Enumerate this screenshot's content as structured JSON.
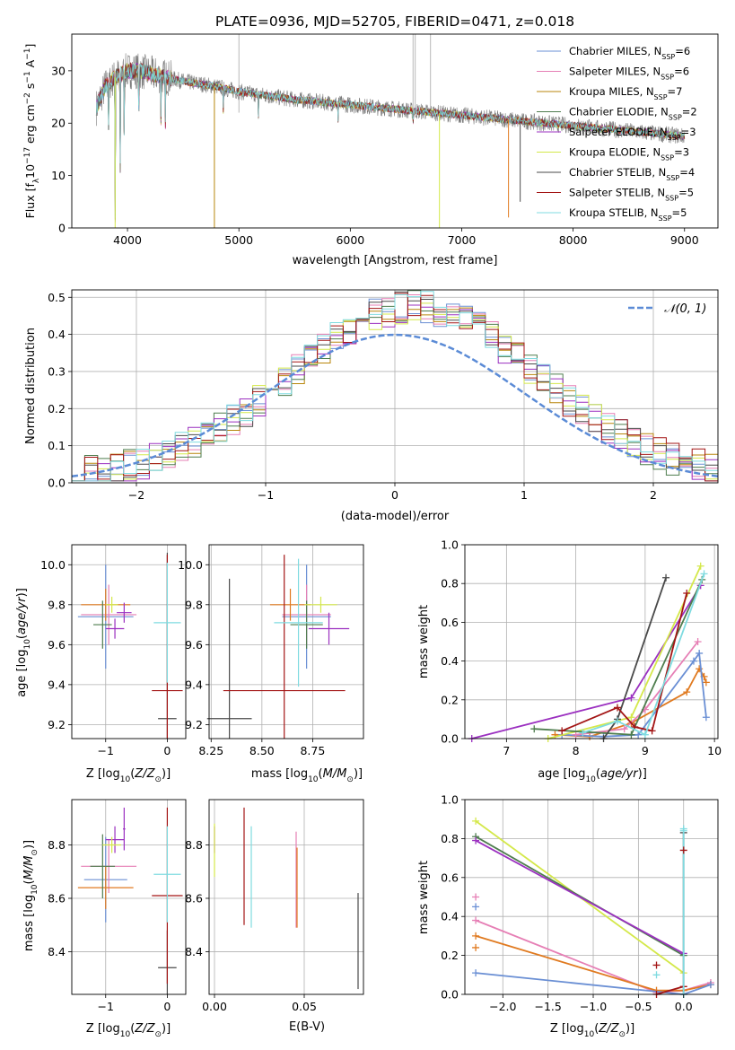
{
  "title": "PLATE=0936, MJD=52705, FIBERID=0471, z=0.018",
  "colors": {
    "chabrier_miles": "#6a8fd4",
    "salpeter_miles": "#e67fb5",
    "kroupa_miles": "#b8860b",
    "chabrier_elodie": "#4e7d4e",
    "salpeter_elodie": "#9b30c0",
    "kroupa_elodie": "#d4e84a",
    "chabrier_stelib": "#4a4a4a",
    "salpeter_stelib": "#a31515",
    "kroupa_stelib": "#7fdbe0",
    "orange": "#e07a20",
    "data": "#7a7a7a",
    "gaussian": "#5b8bd6"
  },
  "chart_data": [
    {
      "id": "spectrum",
      "type": "line",
      "xlabel": "wavelength [Angstrom, rest frame]",
      "ylabel": "Flux [fλ 10⁻¹⁷ erg cm⁻² s⁻¹ A⁻¹]",
      "xlim": [
        3500,
        9300
      ],
      "ylim": [
        0,
        37
      ],
      "xticks": [
        "4000",
        "5000",
        "6000",
        "7000",
        "8000",
        "9000"
      ],
      "yticks": [
        "0",
        "10",
        "20",
        "30"
      ],
      "legend_position": "top-right",
      "legend": [
        {
          "label": "Chabrier MILES, N",
          "sub": "SSP",
          "suffix": "=6",
          "color": "#6a8fd4"
        },
        {
          "label": "Salpeter MILES, N",
          "sub": "SSP",
          "suffix": "=6",
          "color": "#e67fb5"
        },
        {
          "label": "Kroupa MILES, N",
          "sub": "SSP",
          "suffix": "=7",
          "color": "#b8860b"
        },
        {
          "label": "Chabrier ELODIE, N",
          "sub": "SSP",
          "suffix": "=2",
          "color": "#4e7d4e"
        },
        {
          "label": "Salpeter ELODIE, N",
          "sub": "SSP",
          "suffix": "=3",
          "color": "#9b30c0"
        },
        {
          "label": "Kroupa ELODIE, N",
          "sub": "SSP",
          "suffix": "=3",
          "color": "#d4e84a"
        },
        {
          "label": "Chabrier STELIB, N",
          "sub": "SSP",
          "suffix": "=4",
          "color": "#4a4a4a"
        },
        {
          "label": "Salpeter STELIB, N",
          "sub": "SSP",
          "suffix": "=5",
          "color": "#a31515"
        },
        {
          "label": "Kroupa STELIB, N",
          "sub": "SSP",
          "suffix": "=5",
          "color": "#7fdbe0"
        }
      ],
      "continuum": {
        "x": [
          3720,
          3800,
          3900,
          4000,
          4100,
          4300,
          4500,
          4800,
          5000,
          5500,
          6000,
          6500,
          7000,
          7500,
          8000,
          8500,
          9000
        ],
        "y": [
          23,
          27,
          29,
          30,
          30,
          29,
          28,
          27,
          26,
          24.5,
          23.5,
          22.5,
          21.5,
          20.5,
          19.5,
          18.5,
          17.5
        ]
      },
      "absorption_lines": [
        {
          "x": 3830,
          "depth": 8
        },
        {
          "x": 3889,
          "depth": 30
        },
        {
          "x": 3934,
          "depth": 20
        },
        {
          "x": 3970,
          "depth": 12
        },
        {
          "x": 4102,
          "depth": 10
        },
        {
          "x": 4300,
          "depth": 8
        },
        {
          "x": 4340,
          "depth": 9
        },
        {
          "x": 4861,
          "depth": 5
        },
        {
          "x": 5175,
          "depth": 4
        },
        {
          "x": 5890,
          "depth": 3
        },
        {
          "x": 6563,
          "depth": 3
        }
      ],
      "model_glitches": [
        {
          "x": 3889,
          "to": 0,
          "color": "#d4e84a"
        },
        {
          "x": 4780,
          "to": 0,
          "color": "#b8860b"
        },
        {
          "x": 6800,
          "to": 0,
          "color": "#d4e84a"
        },
        {
          "x": 7420,
          "to": 2,
          "color": "#e07a20"
        },
        {
          "x": 7525,
          "to": 5,
          "color": "#4a4a4a"
        }
      ],
      "emission_lines": [
        {
          "x": 5000,
          "y": 37
        },
        {
          "x": 6563,
          "y": 37
        },
        {
          "x": 6583,
          "y": 37
        },
        {
          "x": 6720,
          "y": 37
        }
      ]
    },
    {
      "id": "residuals",
      "type": "histogram",
      "xlabel": "(data-model)/error",
      "ylabel": "Normed distribution",
      "xlim": [
        -2.5,
        2.5
      ],
      "ylim": [
        0,
        0.52
      ],
      "xticks": [
        "−2",
        "−1",
        "0",
        "1",
        "2"
      ],
      "yticks": [
        "0.0",
        "0.1",
        "0.2",
        "0.3",
        "0.4",
        "0.5"
      ],
      "legend_position": "top-right",
      "legend_label": "N(0, 1)",
      "bin_width": 0.1,
      "bin_start": -2.5,
      "series_colors": [
        "#6a8fd4",
        "#e67fb5",
        "#b8860b",
        "#4e7d4e",
        "#9b30c0",
        "#d4e84a",
        "#4a4a4a",
        "#a31515",
        "#7fdbe0"
      ]
    },
    {
      "id": "age_vs_Z",
      "type": "errorbar",
      "xlabel_main": "Z [log",
      "xlabel_sub": "10",
      "xlabel_rest": "(Z/Z⊙)]",
      "ylabel": "age  [log10(age/yr)]",
      "xlim": [
        -1.55,
        0.3
      ],
      "ylim": [
        9.13,
        10.1
      ],
      "xticks": [
        {
          "v": -1,
          "l": "−1"
        },
        {
          "v": 0,
          "l": "0"
        }
      ],
      "yticks": [
        {
          "v": 9.2,
          "l": "9.2"
        },
        {
          "v": 9.4,
          "l": "9.4"
        },
        {
          "v": 9.6,
          "l": "9.6"
        },
        {
          "v": 9.8,
          "l": "9.8"
        },
        {
          "v": 10.0,
          "l": "10.0"
        }
      ],
      "points": [
        {
          "x": -1.0,
          "y": 9.74,
          "xerr": 0.45,
          "yerr": 0.26,
          "color": "#6a8fd4"
        },
        {
          "x": -0.95,
          "y": 9.75,
          "xerr": 0.45,
          "yerr": 0.15,
          "color": "#e67fb5"
        },
        {
          "x": -1.0,
          "y": 9.8,
          "xerr": 0.4,
          "yerr": 0.08,
          "color": "#e07a20"
        },
        {
          "x": -1.05,
          "y": 9.7,
          "xerr": 0.15,
          "yerr": 0.12,
          "color": "#4e7d4e"
        },
        {
          "x": -0.7,
          "y": 9.76,
          "xerr": 0.12,
          "yerr": 0.05,
          "color": "#9b30c0"
        },
        {
          "x": -0.9,
          "y": 9.8,
          "xerr": 0.1,
          "yerr": 0.04,
          "color": "#d4e84a"
        },
        {
          "x": 0.0,
          "y": 9.23,
          "xerr": 0.15,
          "yerr": 0.83,
          "color": "#4a4a4a"
        },
        {
          "x": 0.0,
          "y": 9.37,
          "xerr": 0.25,
          "yerr": 0.68,
          "color": "#a31515"
        },
        {
          "x": 0.0,
          "y": 9.71,
          "xerr": 0.22,
          "yerr": 0.3,
          "color": "#7fdbe0"
        },
        {
          "x": -0.85,
          "y": 9.68,
          "xerr": 0.15,
          "yerr": 0.05,
          "color": "#9b30c0"
        }
      ]
    },
    {
      "id": "age_vs_mass",
      "type": "errorbar",
      "xlabel_main": "mass [log",
      "xlabel_sub": "10",
      "xlabel_rest": "(M/M⊙)]",
      "xlim": [
        8.24,
        9.0
      ],
      "ylim": [
        9.13,
        10.1
      ],
      "xticks": [
        {
          "v": 8.25,
          "l": "8.25"
        },
        {
          "v": 8.5,
          "l": "8.50"
        },
        {
          "v": 8.75,
          "l": "8.75"
        }
      ],
      "yticks": [
        {
          "v": 9.2,
          "l": "9.2"
        },
        {
          "v": 9.4,
          "l": "9.4"
        },
        {
          "v": 9.6,
          "l": "9.6"
        },
        {
          "v": 9.8,
          "l": "9.8"
        },
        {
          "v": 10.0,
          "l": "10.0"
        }
      ],
      "points": [
        {
          "x": 8.72,
          "y": 9.74,
          "xerr": 0.12,
          "yerr": 0.26,
          "color": "#6a8fd4"
        },
        {
          "x": 8.72,
          "y": 9.75,
          "xerr": 0.12,
          "yerr": 0.15,
          "color": "#e67fb5"
        },
        {
          "x": 8.64,
          "y": 9.8,
          "xerr": 0.1,
          "yerr": 0.08,
          "color": "#e07a20"
        },
        {
          "x": 8.72,
          "y": 9.7,
          "xerr": 0.08,
          "yerr": 0.12,
          "color": "#4e7d4e"
        },
        {
          "x": 8.83,
          "y": 9.68,
          "xerr": 0.1,
          "yerr": 0.08,
          "color": "#9b30c0"
        },
        {
          "x": 8.79,
          "y": 9.8,
          "xerr": 0.08,
          "yerr": 0.04,
          "color": "#d4e84a"
        },
        {
          "x": 8.34,
          "y": 9.23,
          "xerr": 0.11,
          "yerr": 0.7,
          "color": "#4a4a4a"
        },
        {
          "x": 8.61,
          "y": 9.37,
          "xerr": 0.3,
          "yerr": 0.68,
          "color": "#a31515"
        },
        {
          "x": 8.68,
          "y": 9.71,
          "xerr": 0.12,
          "yerr": 0.32,
          "color": "#7fdbe0"
        }
      ]
    },
    {
      "id": "weight_vs_age",
      "type": "line",
      "xlabel": "age  [log10(age/yr)]",
      "ylabel": "mass weight",
      "xlim": [
        6.4,
        10.05
      ],
      "ylim": [
        0,
        1.0
      ],
      "xticks": [
        {
          "v": 7,
          "l": "7"
        },
        {
          "v": 8,
          "l": "8"
        },
        {
          "v": 9,
          "l": "9"
        },
        {
          "v": 10,
          "l": "10"
        }
      ],
      "yticks": [
        {
          "v": 0,
          "l": "0.0"
        },
        {
          "v": 0.2,
          "l": "0.2"
        },
        {
          "v": 0.4,
          "l": "0.4"
        },
        {
          "v": 0.6,
          "l": "0.6"
        },
        {
          "v": 0.8,
          "l": "0.8"
        },
        {
          "v": 1.0,
          "l": "1.0"
        }
      ],
      "series": [
        {
          "color": "#e07a20",
          "x": [
            7.7,
            8.2,
            8.8,
            9.6,
            9.78,
            9.85,
            9.88
          ],
          "y": [
            0.02,
            0.01,
            0.08,
            0.24,
            0.36,
            0.32,
            0.29
          ]
        },
        {
          "color": "#6a8fd4",
          "x": [
            7.8,
            8.4,
            8.9,
            9.7,
            9.78,
            9.88
          ],
          "y": [
            0.02,
            0.01,
            0.02,
            0.4,
            0.44,
            0.11
          ]
        },
        {
          "color": "#e67fb5",
          "x": [
            8.0,
            8.7,
            9.0,
            9.76
          ],
          "y": [
            0.02,
            0.05,
            0.15,
            0.5
          ]
        },
        {
          "color": "#9b30c0",
          "x": [
            6.5,
            8.8,
            9.8
          ],
          "y": [
            0.0,
            0.21,
            0.79
          ]
        },
        {
          "color": "#d4e84a",
          "x": [
            7.6,
            8.8,
            9.8
          ],
          "y": [
            0.0,
            0.11,
            0.89
          ]
        },
        {
          "color": "#4e7d4e",
          "x": [
            7.4,
            8.8,
            9.82
          ],
          "y": [
            0.05,
            0.02,
            0.82
          ]
        },
        {
          "color": "#4a4a4a",
          "x": [
            8.4,
            8.6,
            9.3
          ],
          "y": [
            0.0,
            0.1,
            0.83
          ]
        },
        {
          "color": "#a31515",
          "x": [
            7.8,
            8.6,
            8.85,
            9.1,
            9.6
          ],
          "y": [
            0.04,
            0.16,
            0.06,
            0.04,
            0.75
          ]
        },
        {
          "color": "#7fdbe0",
          "x": [
            8.1,
            8.6,
            9.0,
            9.85
          ],
          "y": [
            0.03,
            0.09,
            0.02,
            0.85
          ]
        }
      ]
    },
    {
      "id": "mass_vs_Z",
      "type": "errorbar",
      "xlabel_main": "Z [log",
      "xlabel_sub": "10",
      "xlabel_rest": "(Z/Z⊙)]",
      "ylabel": "mass [log10(M/M⊙)]",
      "xlim": [
        -1.55,
        0.3
      ],
      "ylim": [
        8.24,
        8.97
      ],
      "xticks": [
        {
          "v": -1,
          "l": "−1"
        },
        {
          "v": 0,
          "l": "0"
        }
      ],
      "yticks": [
        {
          "v": 8.4,
          "l": "8.4"
        },
        {
          "v": 8.6,
          "l": "8.6"
        },
        {
          "v": 8.8,
          "l": "8.8"
        }
      ],
      "points": [
        {
          "x": -1.0,
          "y": 8.67,
          "xerr": 0.35,
          "yerr": 0.16,
          "color": "#6a8fd4"
        },
        {
          "x": -0.95,
          "y": 8.72,
          "xerr": 0.45,
          "yerr": 0.1,
          "color": "#e67fb5"
        },
        {
          "x": -1.0,
          "y": 8.64,
          "xerr": 0.45,
          "yerr": 0.08,
          "color": "#e07a20"
        },
        {
          "x": -1.05,
          "y": 8.72,
          "xerr": 0.2,
          "yerr": 0.12,
          "color": "#4e7d4e"
        },
        {
          "x": -0.85,
          "y": 8.82,
          "xerr": 0.15,
          "yerr": 0.05,
          "color": "#9b30c0"
        },
        {
          "x": -0.9,
          "y": 8.8,
          "xerr": 0.15,
          "yerr": 0.03,
          "color": "#d4e84a"
        },
        {
          "x": 0.0,
          "y": 8.34,
          "xerr": 0.15,
          "yerr": 0.14,
          "color": "#4a4a4a"
        },
        {
          "x": 0.0,
          "y": 8.61,
          "xerr": 0.25,
          "yerr": 0.33,
          "color": "#a31515"
        },
        {
          "x": 0.0,
          "y": 8.69,
          "xerr": 0.22,
          "yerr": 0.18,
          "color": "#7fdbe0"
        },
        {
          "x": -0.7,
          "y": 8.86,
          "xerr": 0.02,
          "yerr": 0.08,
          "color": "#9b30c0"
        }
      ]
    },
    {
      "id": "mass_vs_ebv",
      "type": "errorbar",
      "xlabel": "E(B-V)",
      "xlim": [
        -0.003,
        0.083
      ],
      "ylim": [
        8.24,
        8.97
      ],
      "xticks": [
        {
          "v": 0.0,
          "l": "0.00"
        },
        {
          "v": 0.05,
          "l": "0.05"
        }
      ],
      "yticks": [
        {
          "v": 8.4,
          "l": "8.4"
        },
        {
          "v": 8.6,
          "l": "8.6"
        },
        {
          "v": 8.8,
          "l": "8.8"
        }
      ],
      "points": [
        {
          "x": 0.0,
          "y": 8.82,
          "yerr": 0.05,
          "color": "#9b30c0"
        },
        {
          "x": 0.0,
          "y": 8.78,
          "yerr": 0.1,
          "color": "#d4e84a"
        },
        {
          "x": 0.0165,
          "y": 8.72,
          "yerr": 0.22,
          "color": "#a31515"
        },
        {
          "x": 0.0205,
          "y": 8.68,
          "yerr": 0.19,
          "color": "#7fdbe0"
        },
        {
          "x": 0.0455,
          "y": 8.67,
          "yerr": 0.18,
          "color": "#e67fb5"
        },
        {
          "x": 0.046,
          "y": 8.64,
          "yerr": 0.15,
          "color": "#e07a20"
        },
        {
          "x": 0.08,
          "y": 8.44,
          "yerr": 0.18,
          "color": "#4a4a4a"
        }
      ]
    },
    {
      "id": "weight_vs_Z",
      "type": "line",
      "xlabel_main": "Z [log",
      "xlabel_sub": "10",
      "xlabel_rest": "(Z/Z⊙)]",
      "ylabel": "mass weight",
      "xlim": [
        -2.42,
        0.38
      ],
      "ylim": [
        0,
        1.0
      ],
      "xticks": [
        {
          "v": -2.0,
          "l": "−2.0"
        },
        {
          "v": -1.5,
          "l": "−1.5"
        },
        {
          "v": -1.0,
          "l": "−1.0"
        },
        {
          "v": -0.5,
          "l": "−0.5"
        },
        {
          "v": 0.0,
          "l": "0.0"
        }
      ],
      "yticks": [
        {
          "v": 0,
          "l": "0.0"
        },
        {
          "v": 0.2,
          "l": "0.2"
        },
        {
          "v": 0.4,
          "l": "0.4"
        },
        {
          "v": 0.6,
          "l": "0.6"
        },
        {
          "v": 0.8,
          "l": "0.8"
        },
        {
          "v": 1.0,
          "l": "1.0"
        }
      ],
      "series": [
        {
          "color": "#d4e84a",
          "x": [
            -2.3,
            0.0
          ],
          "y": [
            0.89,
            0.11
          ]
        },
        {
          "color": "#4e7d4e",
          "x": [
            -2.3,
            0.0
          ],
          "y": [
            0.81,
            0.2
          ]
        },
        {
          "color": "#9b30c0",
          "x": [
            -2.3,
            0.0
          ],
          "y": [
            0.79,
            0.21
          ]
        },
        {
          "color": "#e67fb5",
          "x": [
            -2.3,
            -0.3,
            0.0,
            0.3
          ],
          "y": [
            0.38,
            0.01,
            0.02,
            0.06
          ]
        },
        {
          "color": "#e07a20",
          "x": [
            -2.3,
            -0.3,
            0.0,
            0.3
          ],
          "y": [
            0.3,
            0.02,
            0.02,
            0.05
          ]
        },
        {
          "color": "#6a8fd4",
          "x": [
            -2.3,
            0.0,
            0.3
          ],
          "y": [
            0.11,
            0.0,
            0.05
          ]
        },
        {
          "color": "#a31515",
          "x": [
            -0.3,
            0.0
          ],
          "y": [
            0.0,
            0.04
          ]
        },
        {
          "color": "#4a4a4a",
          "x": [
            0.0,
            0.0
          ],
          "y": [
            0.0,
            0.83
          ]
        },
        {
          "color": "#7fdbe0",
          "x": [
            0.0,
            0.0
          ],
          "y": [
            0.0,
            0.85
          ]
        }
      ],
      "markers": [
        {
          "x": -2.3,
          "y": 0.5,
          "color": "#e67fb5"
        },
        {
          "x": -2.3,
          "y": 0.45,
          "color": "#6a8fd4"
        },
        {
          "x": -2.3,
          "y": 0.24,
          "color": "#e07a20"
        },
        {
          "x": -0.3,
          "y": 0.15,
          "color": "#a31515"
        },
        {
          "x": -0.3,
          "y": 0.1,
          "color": "#7fdbe0"
        },
        {
          "x": 0.0,
          "y": 0.74,
          "color": "#a31515"
        },
        {
          "x": 0.0,
          "y": 0.84,
          "color": "#7fdbe0"
        }
      ]
    }
  ]
}
